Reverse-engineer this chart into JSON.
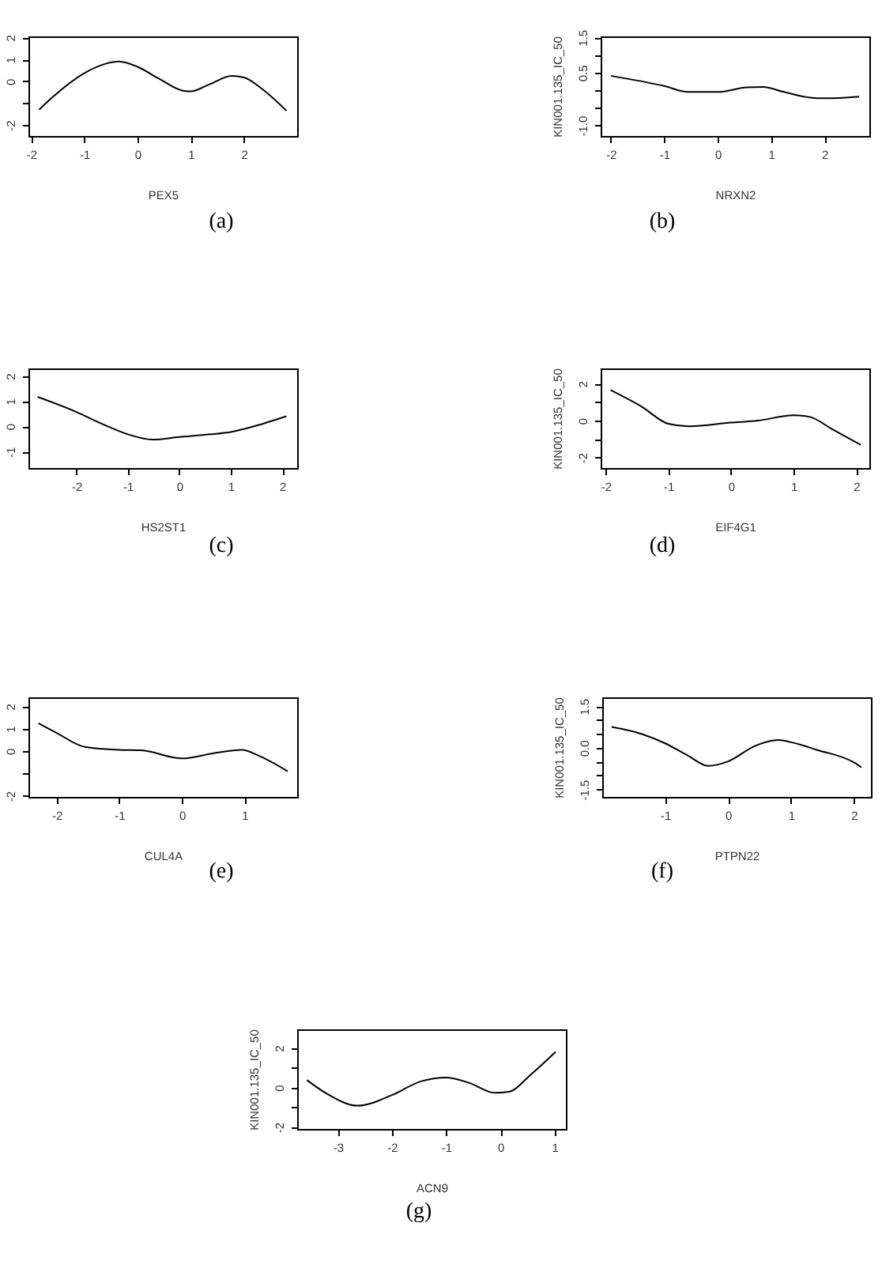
{
  "chart_data": [
    {
      "type": "line",
      "title": "(a)",
      "xlabel": "PEX5",
      "color": "#000000",
      "xlim": [
        -2.05,
        3.0
      ],
      "ylim": [
        -2.5,
        2.05
      ],
      "xticks": [
        -2,
        -1,
        0,
        1,
        2
      ],
      "yticks": [
        -2,
        {
          "value": -1,
          "label": null
        },
        0,
        1,
        2
      ],
      "x": [
        -1.85,
        -1.6,
        -1,
        -0.6,
        -0.35,
        0,
        0.4,
        0.87,
        1,
        1.37,
        1.77,
        2,
        2.35,
        2.8
      ],
      "values": [
        -1.3,
        -0.73,
        0.37,
        0.8,
        0.9,
        0.66,
        0.12,
        -0.44,
        -0.46,
        -0.12,
        0.24,
        0.17,
        -0.37,
        -1.35
      ]
    },
    {
      "type": "line",
      "title": "(b)",
      "xlabel": "NRXN2",
      "ylabel": "KIN001.135_IC_50",
      "color": "#000000",
      "xlim": [
        -2.19,
        2.84
      ],
      "ylim": [
        -1.3,
        1.53
      ],
      "xticks": [
        -2,
        -1,
        0,
        1,
        2
      ],
      "yticks": [
        {
          "value": -1.0,
          "label": "-1.0"
        },
        {
          "value": -0.5,
          "label": null
        },
        {
          "value": 0,
          "label": null
        },
        {
          "value": 0.5,
          "label": "0.5"
        },
        {
          "value": 1.0,
          "label": null
        },
        {
          "value": 1.5,
          "label": "1.5"
        }
      ],
      "x": [
        -2,
        -1,
        -0.55,
        0,
        0.55,
        0.85,
        1.24,
        1.73,
        2,
        2.65
      ],
      "values": [
        0.41,
        0.12,
        -0.05,
        -0.05,
        0.08,
        0.09,
        -0.05,
        -0.21,
        -0.23,
        -0.18
      ]
    },
    {
      "type": "line",
      "title": "(c)",
      "xlabel": "HS2ST1",
      "color": "#000000",
      "xlim": [
        -2.93,
        2.29
      ],
      "ylim": [
        -1.66,
        2.3
      ],
      "xticks": [
        -2,
        -1,
        0,
        1,
        2
      ],
      "yticks": [
        -1,
        0,
        1,
        2
      ],
      "x": [
        -2.75,
        -2,
        -1.44,
        -1,
        -0.52,
        0,
        0.6,
        1,
        1.42,
        2.08
      ],
      "values": [
        1.17,
        0.57,
        0.04,
        -0.32,
        -0.53,
        -0.43,
        -0.32,
        -0.23,
        -0.02,
        0.4
      ]
    },
    {
      "type": "line",
      "title": "(d)",
      "xlabel": "EIF4G1",
      "ylabel": "KIN001.135_IC_50",
      "color": "#000000",
      "xlim": [
        -2.08,
        2.21
      ],
      "ylim": [
        -2.57,
        2.83
      ],
      "xticks": [
        -2,
        -1,
        0,
        1,
        2
      ],
      "yticks": [
        -2,
        {
          "value": -1,
          "label": null
        },
        0,
        {
          "value": 1,
          "label": null
        },
        2
      ],
      "x": [
        -1.92,
        -1.43,
        -1,
        -0.67,
        0,
        0.43,
        1,
        1.26,
        1.6,
        2.07
      ],
      "values": [
        1.66,
        0.77,
        -0.17,
        -0.31,
        -0.11,
        0,
        0.29,
        0.2,
        -0.43,
        -1.31
      ]
    },
    {
      "type": "line",
      "title": "(e)",
      "xlabel": "CUL4A",
      "color": "#000000",
      "xlim": [
        -2.45,
        1.84
      ],
      "ylim": [
        -2.05,
        2.4
      ],
      "xticks": [
        -2,
        -1,
        0,
        1
      ],
      "yticks": [
        -2,
        {
          "value": -1,
          "label": null
        },
        0,
        1,
        2
      ],
      "x": [
        -2.29,
        -2,
        -1.55,
        -1,
        -0.65,
        0,
        0.51,
        0.96,
        1.22,
        1.69
      ],
      "values": [
        1.24,
        0.81,
        0.18,
        0.05,
        0.03,
        -0.33,
        -0.1,
        0.05,
        -0.2,
        -0.91
      ]
    },
    {
      "type": "line",
      "title": "(f)",
      "xlabel": "PTPN22",
      "ylabel": "KIN001.135_IC_50",
      "color": "#000000",
      "xlim": [
        -2.0,
        2.27
      ],
      "ylim": [
        -1.77,
        1.82
      ],
      "xticks": [
        -1,
        0,
        1,
        2
      ],
      "yticks": [
        {
          "value": -1.5,
          "label": "-1.5"
        },
        {
          "value": -1.0,
          "label": null
        },
        {
          "value": -0.5,
          "label": null
        },
        {
          "value": 0,
          "label": "0.0"
        },
        {
          "value": 0.5,
          "label": null
        },
        {
          "value": 1.0,
          "label": null
        },
        {
          "value": 1.5,
          "label": "1.5"
        }
      ],
      "x": [
        -1.85,
        -1.36,
        -1,
        -0.64,
        -0.32,
        0,
        0.44,
        0.8,
        1,
        1.42,
        2,
        2.12
      ],
      "values": [
        0.75,
        0.49,
        0.16,
        -0.28,
        -0.65,
        -0.49,
        0.08,
        0.28,
        0.2,
        -0.08,
        -0.53,
        -0.71
      ]
    },
    {
      "type": "line",
      "title": "(g)",
      "xlabel": "ACN9",
      "ylabel": "KIN001.135_IC_50",
      "color": "#000000",
      "xlim": [
        -3.75,
        1.21
      ],
      "ylim": [
        -2.1,
        2.95
      ],
      "xticks": [
        -3,
        -2,
        -1,
        0,
        1
      ],
      "yticks": [
        -2,
        {
          "value": -1,
          "label": null
        },
        0,
        {
          "value": 1,
          "label": null
        },
        2
      ],
      "x": [
        -3.57,
        -3.21,
        -2.63,
        -2,
        -1.46,
        -1,
        -0.58,
        -0.1,
        0.15,
        0.58,
        1.02
      ],
      "values": [
        0.38,
        -0.3,
        -0.92,
        -0.38,
        0.32,
        0.51,
        0.24,
        -0.27,
        -0.22,
        0.7,
        1.81
      ]
    }
  ]
}
